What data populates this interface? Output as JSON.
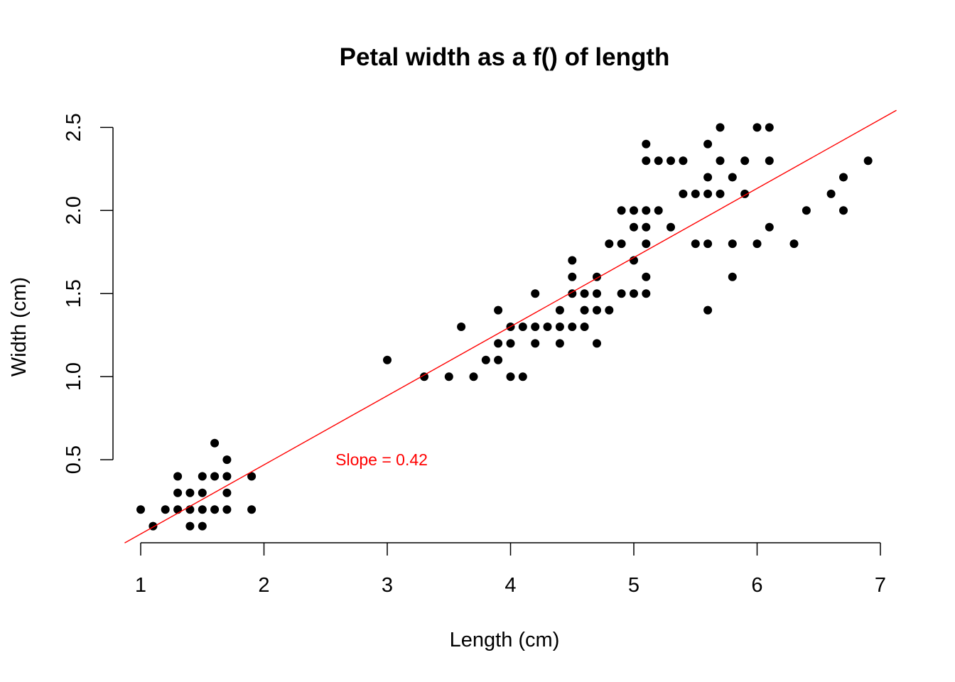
{
  "chart_data": {
    "type": "scatter",
    "title": "Petal width as a f() of length",
    "xlabel": "Length (cm)",
    "ylabel": "Width (cm)",
    "xlim": [
      1,
      7
    ],
    "ylim": [
      0.1,
      2.5
    ],
    "x_ticks": [
      1,
      2,
      3,
      4,
      5,
      6,
      7
    ],
    "x_tick_labels": [
      "1",
      "2",
      "3",
      "4",
      "5",
      "6",
      "7"
    ],
    "y_ticks": [
      0.5,
      1.0,
      1.5,
      2.0,
      2.5
    ],
    "y_tick_labels": [
      "0.5",
      "1.0",
      "1.5",
      "2.0",
      "2.5"
    ],
    "grid": false,
    "point_color": "#000000",
    "series": [
      {
        "points": [
          [
            1.0,
            0.2
          ],
          [
            1.1,
            0.1
          ],
          [
            1.2,
            0.2
          ],
          [
            1.3,
            0.2
          ],
          [
            1.3,
            0.3
          ],
          [
            1.3,
            0.4
          ],
          [
            1.4,
            0.1
          ],
          [
            1.4,
            0.2
          ],
          [
            1.4,
            0.3
          ],
          [
            1.5,
            0.1
          ],
          [
            1.5,
            0.2
          ],
          [
            1.5,
            0.3
          ],
          [
            1.5,
            0.4
          ],
          [
            1.6,
            0.2
          ],
          [
            1.6,
            0.4
          ],
          [
            1.6,
            0.6
          ],
          [
            1.7,
            0.2
          ],
          [
            1.7,
            0.3
          ],
          [
            1.7,
            0.4
          ],
          [
            1.7,
            0.5
          ],
          [
            1.9,
            0.2
          ],
          [
            1.9,
            0.4
          ],
          [
            3.0,
            1.1
          ],
          [
            3.3,
            1.0
          ],
          [
            3.5,
            1.0
          ],
          [
            3.6,
            1.3
          ],
          [
            3.7,
            1.0
          ],
          [
            3.8,
            1.1
          ],
          [
            3.9,
            1.1
          ],
          [
            3.9,
            1.2
          ],
          [
            3.9,
            1.4
          ],
          [
            4.0,
            1.0
          ],
          [
            4.0,
            1.2
          ],
          [
            4.0,
            1.3
          ],
          [
            4.1,
            1.0
          ],
          [
            4.1,
            1.3
          ],
          [
            4.2,
            1.2
          ],
          [
            4.2,
            1.3
          ],
          [
            4.2,
            1.5
          ],
          [
            4.3,
            1.3
          ],
          [
            4.4,
            1.2
          ],
          [
            4.4,
            1.3
          ],
          [
            4.4,
            1.4
          ],
          [
            4.5,
            1.3
          ],
          [
            4.5,
            1.5
          ],
          [
            4.5,
            1.6
          ],
          [
            4.5,
            1.7
          ],
          [
            4.6,
            1.3
          ],
          [
            4.6,
            1.4
          ],
          [
            4.6,
            1.5
          ],
          [
            4.7,
            1.2
          ],
          [
            4.7,
            1.4
          ],
          [
            4.7,
            1.5
          ],
          [
            4.7,
            1.6
          ],
          [
            4.8,
            1.4
          ],
          [
            4.8,
            1.8
          ],
          [
            4.9,
            1.5
          ],
          [
            4.9,
            1.8
          ],
          [
            4.9,
            2.0
          ],
          [
            5.0,
            1.5
          ],
          [
            5.0,
            1.7
          ],
          [
            5.0,
            1.9
          ],
          [
            5.0,
            2.0
          ],
          [
            5.1,
            1.5
          ],
          [
            5.1,
            1.6
          ],
          [
            5.1,
            1.8
          ],
          [
            5.1,
            1.9
          ],
          [
            5.1,
            2.0
          ],
          [
            5.1,
            2.3
          ],
          [
            5.1,
            2.4
          ],
          [
            5.2,
            2.0
          ],
          [
            5.2,
            2.3
          ],
          [
            5.3,
            1.9
          ],
          [
            5.3,
            2.3
          ],
          [
            5.4,
            2.1
          ],
          [
            5.4,
            2.3
          ],
          [
            5.5,
            1.8
          ],
          [
            5.5,
            2.1
          ],
          [
            5.6,
            1.4
          ],
          [
            5.6,
            1.8
          ],
          [
            5.6,
            2.1
          ],
          [
            5.6,
            2.2
          ],
          [
            5.6,
            2.4
          ],
          [
            5.7,
            2.1
          ],
          [
            5.7,
            2.3
          ],
          [
            5.7,
            2.5
          ],
          [
            5.8,
            1.6
          ],
          [
            5.8,
            1.8
          ],
          [
            5.8,
            2.2
          ],
          [
            5.9,
            2.1
          ],
          [
            5.9,
            2.3
          ],
          [
            6.0,
            1.8
          ],
          [
            6.0,
            2.5
          ],
          [
            6.1,
            1.9
          ],
          [
            6.1,
            2.3
          ],
          [
            6.1,
            2.5
          ],
          [
            6.3,
            1.8
          ],
          [
            6.4,
            2.0
          ],
          [
            6.6,
            2.1
          ],
          [
            6.7,
            2.0
          ],
          [
            6.7,
            2.2
          ],
          [
            6.9,
            2.3
          ]
        ]
      }
    ],
    "regression_line": {
      "intercept": -0.363,
      "slope": 0.416,
      "color": "#ff0000"
    },
    "annotation": {
      "text": "Slope = 0.42",
      "x": 2.58,
      "y": 0.5,
      "color": "#ff0000"
    }
  }
}
